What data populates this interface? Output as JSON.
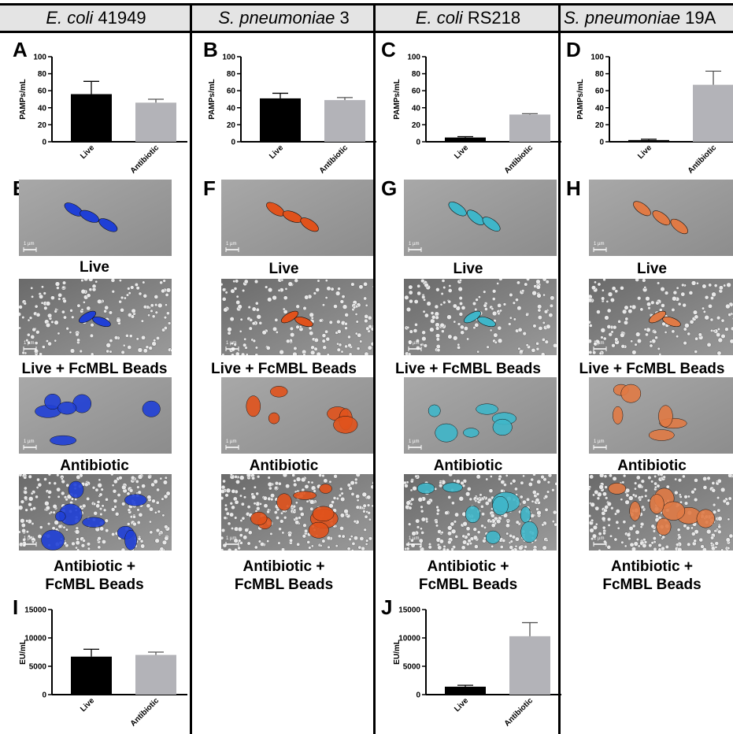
{
  "columns": [
    {
      "organism": "E. coli",
      "strain": "41949"
    },
    {
      "organism": "S. pneumoniae",
      "strain": "3"
    },
    {
      "organism": "E. coli",
      "strain": "RS218"
    },
    {
      "organism": "S. pneumoniae",
      "strain": "19A"
    }
  ],
  "panel_letters": {
    "bar": [
      "A",
      "B",
      "C",
      "D"
    ],
    "micro": [
      "E",
      "F",
      "G",
      "H"
    ],
    "endotoxin": [
      "I",
      "J"
    ]
  },
  "image_captions": {
    "live": "Live",
    "live_beads": "Live + FcMBL Beads",
    "antibiotic": "Antibiotic",
    "antibiotic_beads_1": "Antibiotic +",
    "antibiotic_beads_2": "FcMBL Beads"
  },
  "scale_bar_label": "1 µm",
  "micrograph_colors": [
    "#1f3fd6",
    "#e0521c",
    "#3fb6c9",
    "#e07a45"
  ],
  "chart_data": [
    {
      "panel": "A",
      "type": "bar",
      "categories": [
        "Live",
        "Antibiotic"
      ],
      "values": [
        56,
        46
      ],
      "errors": [
        15,
        4
      ],
      "ylabel": "PAMPs/mL",
      "ylim": [
        0,
        100
      ],
      "yticks": [
        0,
        20,
        40,
        60,
        80,
        100
      ],
      "colors": [
        "#000000",
        "#b3b3b8"
      ]
    },
    {
      "panel": "B",
      "type": "bar",
      "categories": [
        "Live",
        "Antibiotic"
      ],
      "values": [
        51,
        49
      ],
      "errors": [
        6,
        3
      ],
      "ylabel": "PAMPs/mL",
      "ylim": [
        0,
        100
      ],
      "yticks": [
        0,
        20,
        40,
        60,
        80,
        100
      ],
      "colors": [
        "#000000",
        "#b3b3b8"
      ]
    },
    {
      "panel": "C",
      "type": "bar",
      "categories": [
        "Live",
        "Antibiotic"
      ],
      "values": [
        5,
        32
      ],
      "errors": [
        1,
        1
      ],
      "ylabel": "PAMPs/mL",
      "ylim": [
        0,
        100
      ],
      "yticks": [
        0,
        20,
        40,
        60,
        80,
        100
      ],
      "colors": [
        "#000000",
        "#b3b3b8"
      ]
    },
    {
      "panel": "D",
      "type": "bar",
      "categories": [
        "Live",
        "Antibiotic"
      ],
      "values": [
        2,
        67
      ],
      "errors": [
        1,
        16
      ],
      "ylabel": "PAMPs/mL",
      "ylim": [
        0,
        100
      ],
      "yticks": [
        0,
        20,
        40,
        60,
        80,
        100
      ],
      "colors": [
        "#000000",
        "#b3b3b8"
      ]
    },
    {
      "panel": "I",
      "type": "bar",
      "categories": [
        "Live",
        "Antibiotic"
      ],
      "values": [
        6700,
        7000
      ],
      "errors": [
        1300,
        500
      ],
      "ylabel": "EU/mL",
      "ylim": [
        0,
        15000
      ],
      "yticks": [
        0,
        5000,
        10000,
        15000
      ],
      "colors": [
        "#000000",
        "#b3b3b8"
      ]
    },
    {
      "panel": "J",
      "type": "bar",
      "categories": [
        "Live",
        "Antibiotic"
      ],
      "values": [
        1400,
        10300
      ],
      "errors": [
        250,
        2400
      ],
      "ylabel": "EU/mL",
      "ylim": [
        0,
        15000
      ],
      "yticks": [
        0,
        5000,
        10000,
        15000
      ],
      "colors": [
        "#000000",
        "#b3b3b8"
      ]
    }
  ]
}
